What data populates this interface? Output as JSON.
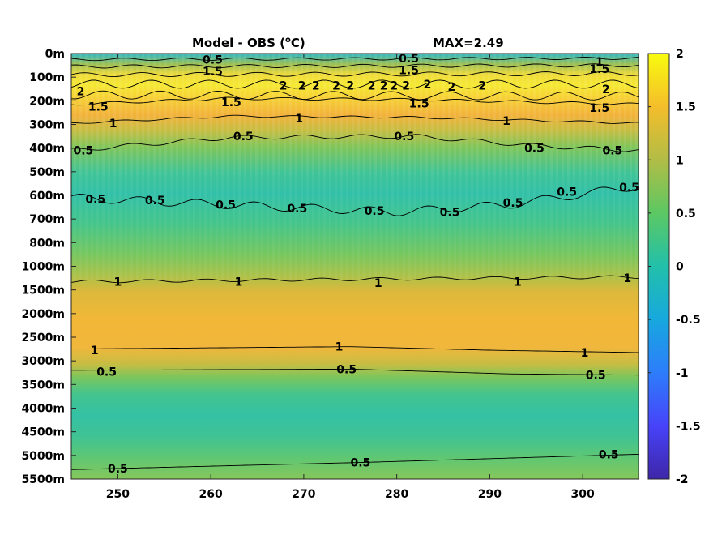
{
  "chart_data": {
    "type": "heatmap",
    "title": "Model - OBS (",
    "title_unit_sup": "o",
    "title_unit_end": "C)",
    "annotation": "MAX=2.49",
    "xlabel": "",
    "ylabel": "",
    "x_ticks": [
      250,
      260,
      270,
      280,
      290,
      300
    ],
    "x_range": [
      245,
      306
    ],
    "y_tick_labels": [
      "0m",
      "100m",
      "200m",
      "300m",
      "400m",
      "500m",
      "600m",
      "700m",
      "800m",
      "1000m",
      "1500m",
      "2000m",
      "2500m",
      "3000m",
      "3500m",
      "4000m",
      "4500m",
      "5000m",
      "5500m"
    ],
    "colorbar": {
      "ticks": [
        "2",
        "1.5",
        "1",
        "0.5",
        "0",
        "-0.5",
        "-1",
        "-1.5",
        "-2"
      ],
      "range": [
        -2,
        2
      ],
      "colormap": "parula",
      "colors": [
        "#3e26a8",
        "#4743f9",
        "#2d7dfb",
        "#17a8de",
        "#22c0aa",
        "#5cc863",
        "#b1bd46",
        "#f4bd2b",
        "#f9fb0e"
      ]
    },
    "depth_profile": [
      {
        "depth": "0m",
        "value": 0.2
      },
      {
        "depth": "100m",
        "value": 1.6
      },
      {
        "depth": "200m",
        "value": 1.8
      },
      {
        "depth": "300m",
        "value": 1.1
      },
      {
        "depth": "400m",
        "value": 0.5
      },
      {
        "depth": "500m",
        "value": 0.3
      },
      {
        "depth": "600m",
        "value": 0.4
      },
      {
        "depth": "700m",
        "value": 0.6
      },
      {
        "depth": "800m",
        "value": 0.7
      },
      {
        "depth": "1000m",
        "value": 0.9
      },
      {
        "depth": "1500m",
        "value": 1.2
      },
      {
        "depth": "2000m",
        "value": 1.3
      },
      {
        "depth": "2500m",
        "value": 1.2
      },
      {
        "depth": "3000m",
        "value": 0.7
      },
      {
        "depth": "3500m",
        "value": 0.4
      },
      {
        "depth": "4000m",
        "value": 0.3
      },
      {
        "depth": "4500m",
        "value": 0.4
      },
      {
        "depth": "5000m",
        "value": 0.55
      },
      {
        "depth": "5500m",
        "value": 0.65
      }
    ],
    "contour_labels": [
      {
        "text": "0.5",
        "x": 260.2,
        "depth_index": 0.25
      },
      {
        "text": "1.5",
        "x": 260.2,
        "depth_index": 0.75
      },
      {
        "text": "0.5",
        "x": 281.3,
        "depth_index": 0.2
      },
      {
        "text": "1.5",
        "x": 281.3,
        "depth_index": 0.7
      },
      {
        "text": "1",
        "x": 301.8,
        "depth_index": 0.35
      },
      {
        "text": "1.5",
        "x": 301.8,
        "depth_index": 0.65
      },
      {
        "text": "2",
        "x": 302.5,
        "depth_index": 1.5
      },
      {
        "text": "2",
        "x": 246.0,
        "depth_index": 1.6
      },
      {
        "text": "2",
        "x": 267.8,
        "depth_index": 1.35
      },
      {
        "text": "2",
        "x": 269.8,
        "depth_index": 1.35
      },
      {
        "text": "2",
        "x": 271.3,
        "depth_index": 1.35
      },
      {
        "text": "2",
        "x": 273.5,
        "depth_index": 1.35
      },
      {
        "text": "2",
        "x": 275.0,
        "depth_index": 1.35
      },
      {
        "text": "2",
        "x": 277.3,
        "depth_index": 1.35
      },
      {
        "text": "2",
        "x": 278.6,
        "depth_index": 1.35
      },
      {
        "text": "2",
        "x": 279.7,
        "depth_index": 1.35
      },
      {
        "text": "2",
        "x": 281.0,
        "depth_index": 1.35
      },
      {
        "text": "2",
        "x": 283.3,
        "depth_index": 1.3
      },
      {
        "text": "2",
        "x": 285.9,
        "depth_index": 1.4
      },
      {
        "text": "2",
        "x": 289.2,
        "depth_index": 1.35
      },
      {
        "text": "1.5",
        "x": 247.9,
        "depth_index": 2.25
      },
      {
        "text": "1.5",
        "x": 262.2,
        "depth_index": 2.05
      },
      {
        "text": "1.5",
        "x": 282.4,
        "depth_index": 2.1
      },
      {
        "text": "1.5",
        "x": 301.8,
        "depth_index": 2.3
      },
      {
        "text": "1",
        "x": 249.5,
        "depth_index": 2.95
      },
      {
        "text": "1",
        "x": 269.5,
        "depth_index": 2.75
      },
      {
        "text": "1",
        "x": 291.8,
        "depth_index": 2.85
      },
      {
        "text": "0.5",
        "x": 246.3,
        "depth_index": 4.1
      },
      {
        "text": "0.5",
        "x": 263.5,
        "depth_index": 3.5
      },
      {
        "text": "0.5",
        "x": 280.8,
        "depth_index": 3.5
      },
      {
        "text": "0.5",
        "x": 294.8,
        "depth_index": 4.0
      },
      {
        "text": "0.5",
        "x": 303.2,
        "depth_index": 4.1
      },
      {
        "text": "0.5",
        "x": 247.6,
        "depth_index": 6.15
      },
      {
        "text": "0.5",
        "x": 254.0,
        "depth_index": 6.2
      },
      {
        "text": "0.5",
        "x": 261.6,
        "depth_index": 6.4
      },
      {
        "text": "0.5",
        "x": 269.3,
        "depth_index": 6.55
      },
      {
        "text": "0.5",
        "x": 277.6,
        "depth_index": 6.65
      },
      {
        "text": "0.5",
        "x": 285.7,
        "depth_index": 6.7
      },
      {
        "text": "0.5",
        "x": 292.5,
        "depth_index": 6.3
      },
      {
        "text": "0.5",
        "x": 298.3,
        "depth_index": 5.85
      },
      {
        "text": "0.5",
        "x": 305.0,
        "depth_index": 5.65
      },
      {
        "text": "1",
        "x": 250.0,
        "depth_index": 9.65
      },
      {
        "text": "1",
        "x": 263.0,
        "depth_index": 9.65
      },
      {
        "text": "1",
        "x": 278.0,
        "depth_index": 9.7
      },
      {
        "text": "1",
        "x": 293.0,
        "depth_index": 9.65
      },
      {
        "text": "1",
        "x": 304.8,
        "depth_index": 9.5
      },
      {
        "text": "1",
        "x": 247.5,
        "depth_index": 12.55
      },
      {
        "text": "1",
        "x": 273.8,
        "depth_index": 12.4
      },
      {
        "text": "1",
        "x": 300.2,
        "depth_index": 12.65
      },
      {
        "text": "0.5",
        "x": 248.8,
        "depth_index": 13.45
      },
      {
        "text": "0.5",
        "x": 274.6,
        "depth_index": 13.35
      },
      {
        "text": "0.5",
        "x": 301.4,
        "depth_index": 13.6
      },
      {
        "text": "0.5",
        "x": 250.0,
        "depth_index": 17.55
      },
      {
        "text": "0.5",
        "x": 276.1,
        "depth_index": 17.3
      },
      {
        "text": "0.5",
        "x": 302.8,
        "depth_index": 16.95
      }
    ]
  }
}
